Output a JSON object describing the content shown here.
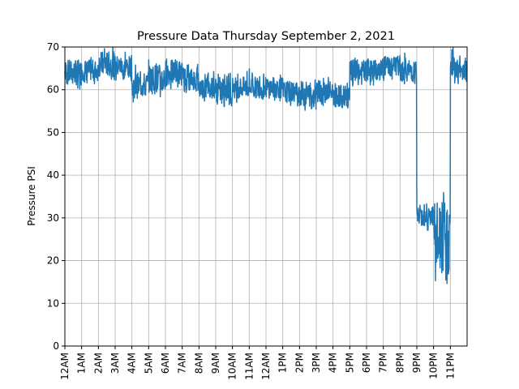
{
  "chart_data": {
    "type": "line",
    "title": "Pressure Data Thursday September 2, 2021",
    "xlabel": "",
    "ylabel": "Pressure PSI",
    "ylim": [
      0,
      70
    ],
    "yticks": [
      0,
      10,
      20,
      30,
      40,
      50,
      60,
      70
    ],
    "xlim": [
      "12AM",
      "12AM"
    ],
    "xticks": [
      "12AM",
      "1AM",
      "2AM",
      "3AM",
      "4AM",
      "5AM",
      "6AM",
      "7AM",
      "8AM",
      "9AM",
      "10AM",
      "11AM",
      "12AM",
      "1PM",
      "2PM",
      "3PM",
      "4PM",
      "5PM",
      "6PM",
      "7PM",
      "8PM",
      "9PM",
      "10PM",
      "11PM"
    ],
    "grid": true,
    "series_color": "#1f77b4",
    "series": [
      {
        "x": [
          "12AM",
          "1AM",
          "2AM",
          "3AM",
          "4AM",
          "5AM",
          "6AM",
          "7AM",
          "8AM",
          "9AM",
          "10AM",
          "11AM",
          "12AM",
          "1PM",
          "2PM",
          "3PM",
          "4PM",
          "5PM",
          "6PM",
          "7PM",
          "8PM",
          "9PM",
          "10PM",
          "11PM"
        ],
        "min": [
          60,
          61,
          62,
          62,
          56,
          58,
          60,
          59,
          57,
          56,
          57,
          57,
          57,
          56,
          55,
          56,
          55,
          60,
          61,
          62,
          61,
          26,
          14,
          61
        ],
        "max": [
          69,
          68,
          70,
          69,
          66,
          67,
          68,
          67,
          65,
          64,
          65,
          65,
          65,
          64,
          63,
          63,
          62,
          68,
          68,
          69,
          69,
          34,
          36,
          70
        ],
        "low": [
          61,
          62,
          63,
          63,
          58,
          59,
          61,
          60,
          58,
          57,
          58,
          58,
          58,
          57,
          56,
          57,
          56,
          61,
          62,
          63,
          62,
          28,
          16,
          62
        ],
        "high": [
          67,
          67,
          69,
          68,
          64,
          66,
          67,
          65,
          63,
          63,
          63,
          63,
          63,
          62,
          62,
          62,
          61,
          67,
          67,
          68,
          67,
          33,
          34,
          68
        ]
      }
    ]
  }
}
